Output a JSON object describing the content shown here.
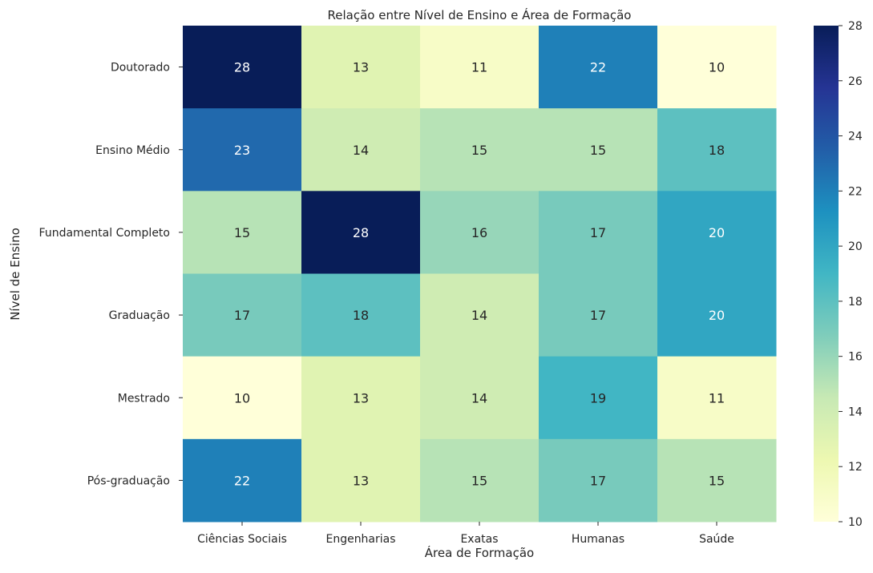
{
  "chart_data": {
    "type": "heatmap",
    "title": "Relação entre Nível de Ensino e Área de Formação",
    "xlabel": "Área de Formação",
    "ylabel": "Nível de Ensino",
    "x_categories": [
      "Ciências Sociais",
      "Engenharias",
      "Exatas",
      "Humanas",
      "Saúde"
    ],
    "y_categories": [
      "Doutorado",
      "Ensino Médio",
      "Fundamental Completo",
      "Graduação",
      "Mestrado",
      "Pós-graduação"
    ],
    "values": [
      [
        28,
        13,
        11,
        22,
        10
      ],
      [
        23,
        14,
        15,
        15,
        18
      ],
      [
        15,
        28,
        16,
        17,
        20
      ],
      [
        17,
        18,
        14,
        17,
        20
      ],
      [
        10,
        13,
        14,
        19,
        11
      ],
      [
        22,
        13,
        15,
        17,
        15
      ]
    ],
    "colormap": "YlGnBu",
    "colorbar": {
      "min": 10,
      "max": 28,
      "ticks": [
        10,
        12,
        14,
        16,
        18,
        20,
        22,
        24,
        26,
        28
      ]
    },
    "annotations": true
  }
}
